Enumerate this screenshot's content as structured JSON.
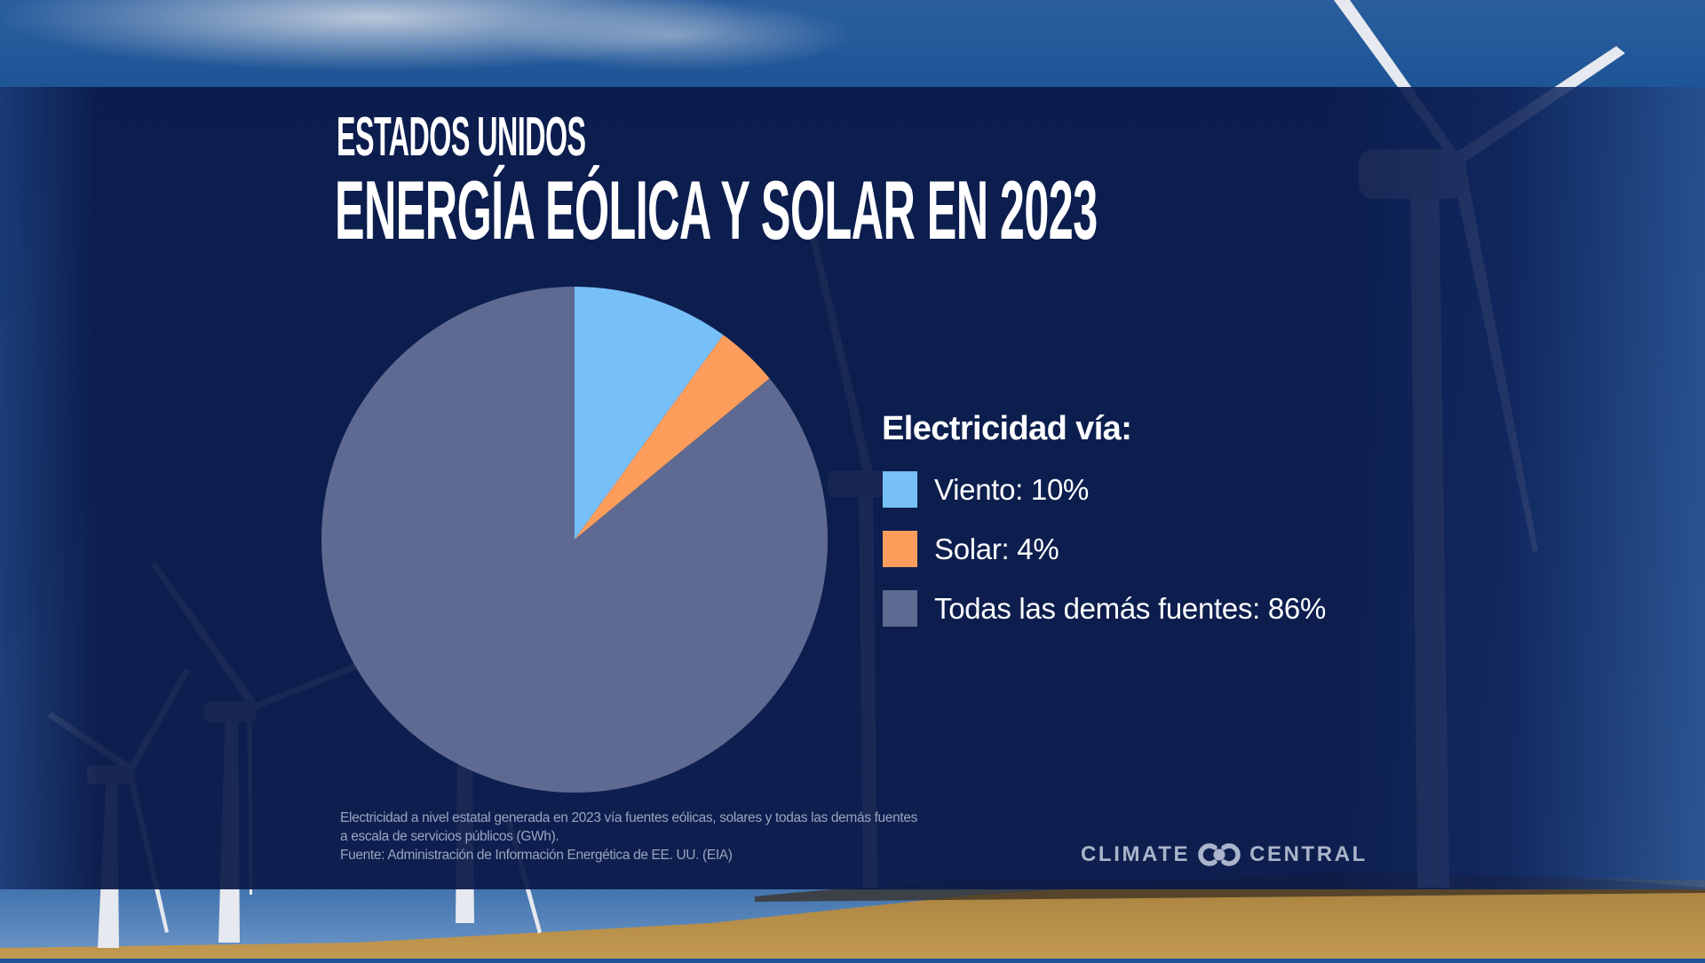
{
  "header": {
    "subtitle": "ESTADOS UNIDOS",
    "title": "ENERGÍA EÓLICA Y SOLAR EN 2023"
  },
  "legend": {
    "title": "Electricidad vía:",
    "items": [
      {
        "label": "Viento: 10%",
        "color": "#76bff7"
      },
      {
        "label": "Solar: 4%",
        "color": "#fd9d5b"
      },
      {
        "label": "Todas las demás fuentes: 86%",
        "color": "#5e6a91"
      }
    ]
  },
  "footnote": {
    "lines": [
      "Electricidad a nivel estatal generada en 2023 vía fuentes eólicas, solares y todas las demás fuentes",
      "a escala de servicios públicos (GWh).",
      "Fuente: Administración de Información Energética de EE. UU. (EIA)"
    ]
  },
  "logo": {
    "left_word": "CLIMATE",
    "right_word": "CENTRAL",
    "icon": "climate-central-rings-icon"
  },
  "colors": {
    "band": "#0a1948",
    "text": "#ffffff",
    "footnote": "#9aa4bf",
    "logo": "#aab4ca"
  },
  "chart_data": {
    "type": "pie",
    "title": "ENERGÍA EÓLICA Y SOLAR EN 2023",
    "subtitle": "ESTADOS UNIDOS",
    "legend_title": "Electricidad vía:",
    "legend_position": "right",
    "start_angle_deg": 0,
    "direction": "clockwise",
    "categories": [
      "Viento",
      "Solar",
      "Todas las demás fuentes"
    ],
    "values": [
      10,
      4,
      86
    ],
    "unit": "%",
    "colors": [
      "#76bff7",
      "#fd9d5b",
      "#5e6a91"
    ]
  }
}
